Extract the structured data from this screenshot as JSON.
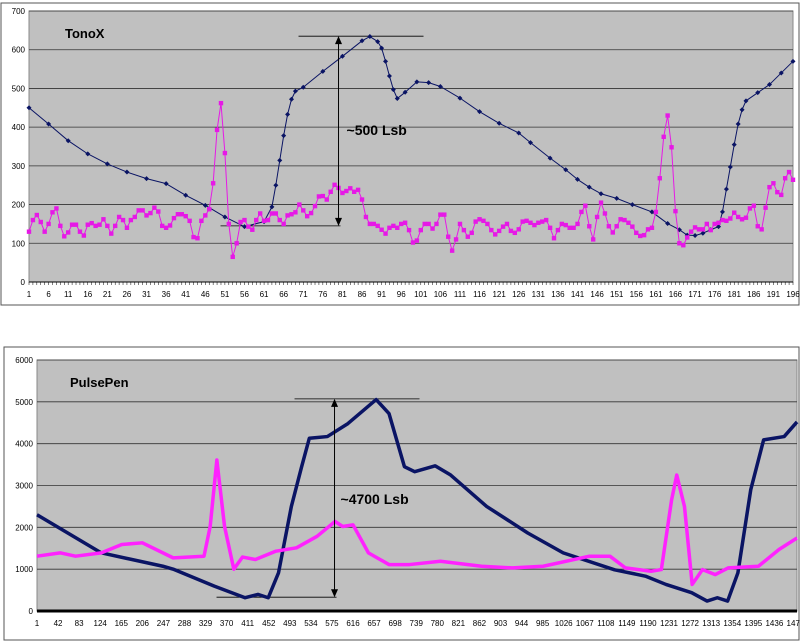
{
  "chart_data": [
    {
      "type": "line",
      "title": "TonoX",
      "xlabel": "",
      "ylabel": "",
      "xlim": [
        1,
        196
      ],
      "ylim": [
        0,
        700
      ],
      "yticks": [
        0,
        100,
        200,
        300,
        400,
        500,
        600,
        700
      ],
      "xtick_step": 5,
      "grid": true,
      "legend": "none",
      "series": [
        {
          "color": "#0a1464",
          "marker": "diamond",
          "points": [
            [
              1,
              450
            ],
            [
              6,
              408
            ],
            [
              11,
              365
            ],
            [
              16,
              331
            ],
            [
              21,
              305
            ],
            [
              26,
              284
            ],
            [
              31,
              267
            ],
            [
              36,
              254
            ],
            [
              41,
              224
            ],
            [
              46,
              198
            ],
            [
              51,
              168
            ],
            [
              56,
              143
            ],
            [
              61,
              156
            ],
            [
              63,
              194
            ],
            [
              64,
              250
            ],
            [
              65,
              314
            ],
            [
              66,
              378
            ],
            [
              67,
              433
            ],
            [
              68,
              472
            ],
            [
              69,
              493
            ],
            [
              71,
              503
            ],
            [
              76,
              544
            ],
            [
              81,
              583
            ],
            [
              86,
              623
            ],
            [
              88,
              634
            ],
            [
              90,
              621
            ],
            [
              91,
              604
            ],
            [
              92,
              570
            ],
            [
              93,
              532
            ],
            [
              94,
              497
            ],
            [
              95,
              474
            ],
            [
              97,
              490
            ],
            [
              100,
              517
            ],
            [
              103,
              515
            ],
            [
              106,
              505
            ],
            [
              111,
              475
            ],
            [
              116,
              440
            ],
            [
              121,
              410
            ],
            [
              126,
              385
            ],
            [
              129,
              360
            ],
            [
              134,
              320
            ],
            [
              138,
              290
            ],
            [
              141,
              265
            ],
            [
              144,
              245
            ],
            [
              147,
              228
            ],
            [
              151,
              216
            ],
            [
              155,
              200
            ],
            [
              160,
              181
            ],
            [
              164,
              151
            ],
            [
              167,
              135
            ],
            [
              169,
              121
            ],
            [
              171,
              120
            ],
            [
              173,
              126
            ],
            [
              175,
              135
            ],
            [
              177,
              143
            ],
            [
              178,
              181
            ],
            [
              179,
              240
            ],
            [
              180,
              297
            ],
            [
              181,
              355
            ],
            [
              182,
              408
            ],
            [
              183,
              445
            ],
            [
              184,
              468
            ],
            [
              187,
              489
            ],
            [
              190,
              510
            ],
            [
              193,
              540
            ],
            [
              196,
              570
            ]
          ]
        },
        {
          "color": "#e619e6",
          "marker": "square",
          "x_start": 1,
          "values": [
            130,
            160,
            173,
            155,
            130,
            150,
            180,
            190,
            145,
            118,
            128,
            148,
            148,
            130,
            120,
            148,
            152,
            145,
            148,
            162,
            145,
            125,
            145,
            168,
            160,
            140,
            160,
            168,
            185,
            185,
            172,
            178,
            192,
            182,
            145,
            140,
            146,
            165,
            175,
            175,
            170,
            158,
            116,
            113,
            158,
            172,
            188,
            255,
            393,
            462,
            333,
            150,
            65,
            100,
            155,
            160,
            143,
            135,
            160,
            177,
            158,
            160,
            177,
            177,
            160,
            150,
            172,
            175,
            180,
            200,
            185,
            170,
            178,
            196,
            221,
            222,
            213,
            233,
            251,
            243,
            230,
            235,
            242,
            233,
            238,
            213,
            168,
            150,
            150,
            145,
            135,
            125,
            140,
            145,
            140,
            150,
            153,
            134,
            102,
            107,
            134,
            150,
            150,
            138,
            150,
            174,
            174,
            117,
            81,
            110,
            150,
            134,
            117,
            127,
            156,
            162,
            158,
            150,
            134,
            123,
            132,
            143,
            150,
            132,
            127,
            136,
            156,
            158,
            153,
            147,
            153,
            156,
            160,
            140,
            113,
            134,
            150,
            147,
            140,
            140,
            150,
            181,
            197,
            144,
            110,
            168,
            205,
            177,
            144,
            128,
            144,
            162,
            160,
            153,
            143,
            127,
            119,
            121,
            136,
            140,
            181,
            268,
            375,
            430,
            348,
            183,
            100,
            95,
            115,
            130,
            141,
            136,
            136,
            150,
            134,
            150,
            153,
            160,
            158,
            164,
            179,
            168,
            162,
            166,
            190,
            197,
            144,
            136,
            192,
            245,
            255,
            232,
            225,
            268,
            284,
            264
          ]
        }
      ],
      "annotation": {
        "label": "~500 Lsb",
        "x": 80,
        "y_low": 145,
        "y_high": 635
      }
    },
    {
      "type": "line",
      "title": "PulsePen",
      "xlabel": "",
      "ylabel": "",
      "xlim": [
        1,
        1480
      ],
      "ylim": [
        0,
        6000
      ],
      "yticks": [
        0,
        1000,
        2000,
        3000,
        4000,
        5000,
        6000
      ],
      "xticks": [
        1,
        42,
        83,
        124,
        165,
        206,
        247,
        288,
        329,
        370,
        411,
        452,
        493,
        534,
        575,
        616,
        657,
        698,
        739,
        780,
        821,
        862,
        903,
        944,
        985,
        1026,
        1067,
        1108,
        1149,
        1190,
        1231,
        1272,
        1313,
        1354,
        1395,
        1436,
        1477
      ],
      "grid": true,
      "legend": "none",
      "series": [
        {
          "color": "#0a1464",
          "points": [
            [
              1,
              2300
            ],
            [
              126,
              1390
            ],
            [
              246,
              1070
            ],
            [
              266,
              1000
            ],
            [
              346,
              595
            ],
            [
              406,
              317
            ],
            [
              431,
              397
            ],
            [
              451,
              317
            ],
            [
              471,
              913
            ],
            [
              496,
              2500
            ],
            [
              516,
              3450
            ],
            [
              531,
              4130
            ],
            [
              566,
              4170
            ],
            [
              606,
              4480
            ],
            [
              661,
              5055
            ],
            [
              686,
              4720
            ],
            [
              716,
              3450
            ],
            [
              736,
              3330
            ],
            [
              776,
              3470
            ],
            [
              806,
              3250
            ],
            [
              876,
              2500
            ],
            [
              956,
              1865
            ],
            [
              1025,
              1390
            ],
            [
              1125,
              985
            ],
            [
              1185,
              833
            ],
            [
              1225,
              635
            ],
            [
              1275,
              437
            ],
            [
              1305,
              238
            ],
            [
              1325,
              317
            ],
            [
              1345,
              238
            ],
            [
              1365,
              913
            ],
            [
              1390,
              2900
            ],
            [
              1415,
              4090
            ],
            [
              1455,
              4170
            ],
            [
              1480,
              4520
            ]
          ]
        },
        {
          "color": "#ff22ff",
          "points": [
            [
              1,
              1310
            ],
            [
              46,
              1390
            ],
            [
              76,
              1310
            ],
            [
              126,
              1390
            ],
            [
              166,
              1590
            ],
            [
              206,
              1630
            ],
            [
              266,
              1270
            ],
            [
              326,
              1310
            ],
            [
              338,
              2020
            ],
            [
              351,
              3610
            ],
            [
              366,
              2020
            ],
            [
              384,
              1000
            ],
            [
              401,
              1290
            ],
            [
              426,
              1230
            ],
            [
              466,
              1430
            ],
            [
              506,
              1510
            ],
            [
              546,
              1785
            ],
            [
              581,
              2140
            ],
            [
              596,
              2020
            ],
            [
              616,
              2060
            ],
            [
              646,
              1390
            ],
            [
              686,
              1110
            ],
            [
              726,
              1110
            ],
            [
              786,
              1190
            ],
            [
              866,
              1070
            ],
            [
              926,
              1030
            ],
            [
              986,
              1070
            ],
            [
              1076,
              1310
            ],
            [
              1116,
              1310
            ],
            [
              1146,
              1030
            ],
            [
              1196,
              950
            ],
            [
              1216,
              990
            ],
            [
              1236,
              2660
            ],
            [
              1246,
              3250
            ],
            [
              1261,
              2500
            ],
            [
              1276,
              635
            ],
            [
              1296,
              990
            ],
            [
              1321,
              870
            ],
            [
              1346,
              1030
            ],
            [
              1405,
              1070
            ],
            [
              1445,
              1470
            ],
            [
              1480,
              1745
            ]
          ]
        }
      ],
      "annotation": {
        "label": "~4700 Lsb",
        "x": 580,
        "y_low": 330,
        "y_high": 5070
      }
    }
  ]
}
